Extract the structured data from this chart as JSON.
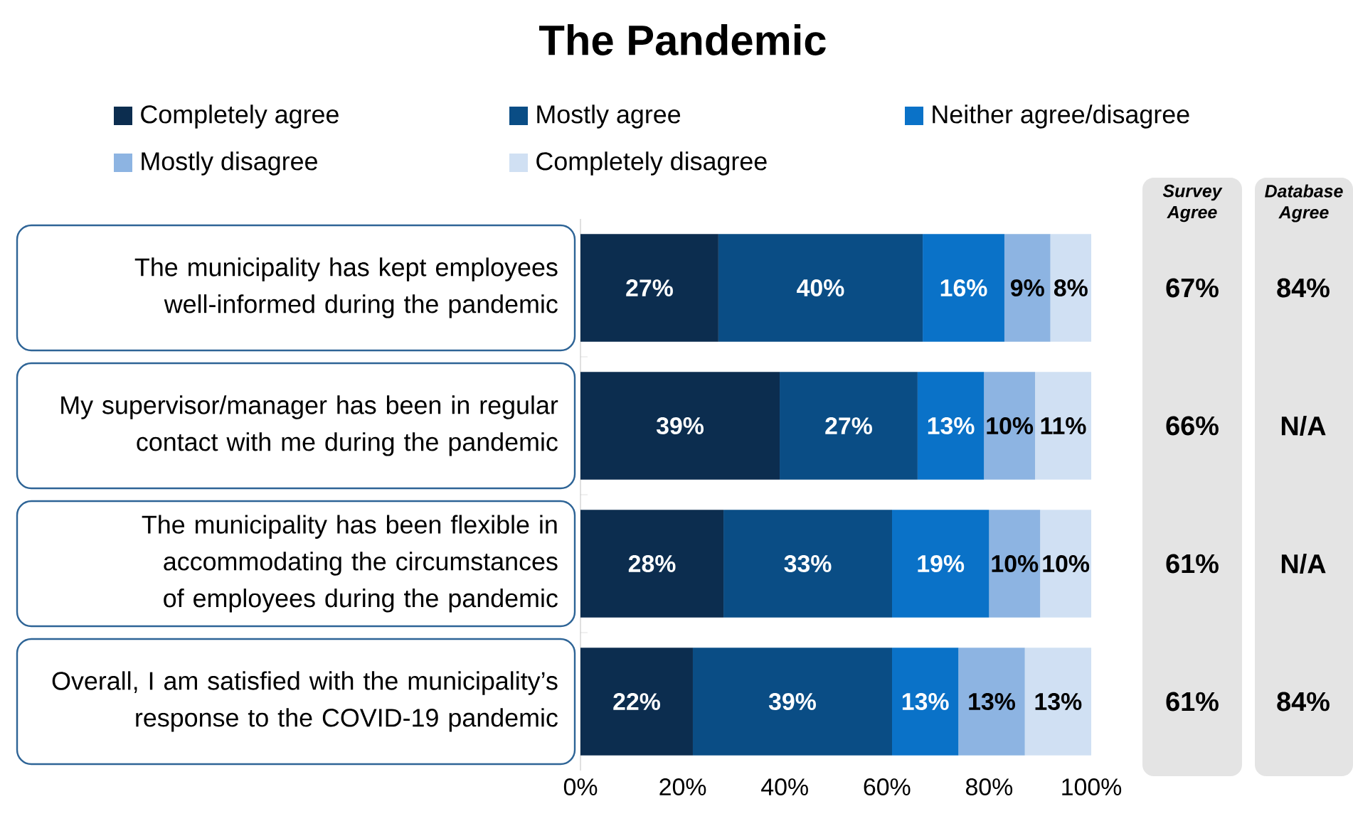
{
  "chart_data": {
    "type": "bar",
    "orientation": "horizontal",
    "stacked": true,
    "title": "The Pandemic",
    "categories": [
      "The municipality has kept employees well-informed during the pandemic",
      "My supervisor/manager has been in regular contact with me during the pandemic",
      "The municipality has been flexible in accommodating the circumstances of employees during the pandemic",
      "Overall, I am satisfied with the municipality’s response to the COVID-19 pandemic"
    ],
    "series": [
      {
        "name": "Completely agree",
        "color": "#0c2d4f",
        "values": [
          27,
          39,
          28,
          22
        ],
        "value_labels": [
          "27%",
          "39%",
          "28%",
          "22%"
        ]
      },
      {
        "name": "Mostly agree",
        "color": "#0a4d85",
        "values": [
          40,
          27,
          33,
          39
        ],
        "value_labels": [
          "40%",
          "27%",
          "33%",
          "39%"
        ]
      },
      {
        "name": "Neither agree/disagree",
        "color": "#0a72c8",
        "values": [
          16,
          13,
          19,
          13
        ],
        "value_labels": [
          "16%",
          "13%",
          "19%",
          "13%"
        ]
      },
      {
        "name": "Mostly disagree",
        "color": "#8db4e2",
        "values": [
          9,
          10,
          10,
          13
        ],
        "value_labels": [
          "9%",
          "10%",
          "10%",
          "13%"
        ]
      },
      {
        "name": "Completely disagree",
        "color": "#d0e0f3",
        "values": [
          8,
          11,
          10,
          13
        ],
        "value_labels": [
          "8%",
          "11%",
          "10%",
          "13%"
        ]
      }
    ],
    "xlim": [
      0,
      100
    ],
    "xticks": [
      {
        "value": 0,
        "label": "0%"
      },
      {
        "value": 20,
        "label": "20%"
      },
      {
        "value": 40,
        "label": "40%"
      },
      {
        "value": 60,
        "label": "60%"
      },
      {
        "value": 80,
        "label": "80%"
      },
      {
        "value": 100,
        "label": "100%"
      }
    ],
    "legend": "top",
    "grid": false,
    "annotations": [
      "Survey Agree",
      "Database Agree",
      "67%",
      "84%",
      "66%",
      "N/A",
      "61%",
      "N/A",
      "61%",
      "84%"
    ]
  }
}
